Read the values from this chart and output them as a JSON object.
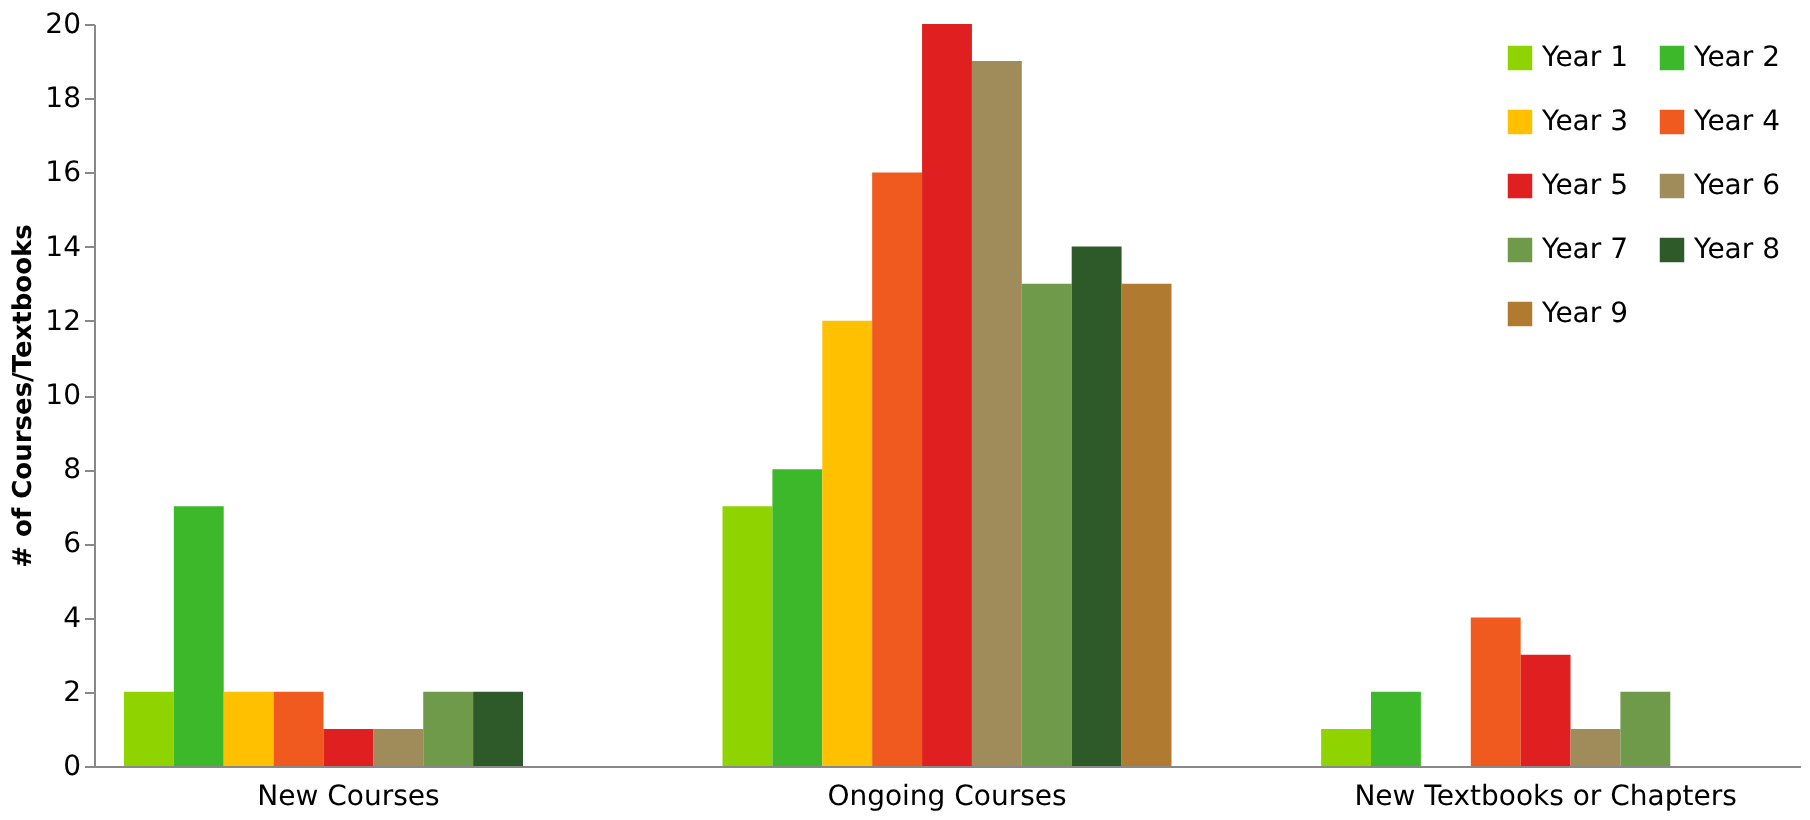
{
  "chart_data": {
    "type": "bar",
    "ylabel": "# of Courses/Textbooks",
    "categories": [
      "New Courses",
      "Ongoing Courses",
      "New Textbooks or Chapters"
    ],
    "series": [
      {
        "name": "Year 1",
        "color": "#8fd400",
        "values": [
          2,
          7,
          1
        ]
      },
      {
        "name": "Year 2",
        "color": "#3cb82a",
        "values": [
          7,
          8,
          2
        ]
      },
      {
        "name": "Year 3",
        "color": "#ffc000",
        "values": [
          2,
          12,
          0
        ]
      },
      {
        "name": "Year 4",
        "color": "#f05a1e",
        "values": [
          2,
          16,
          4
        ]
      },
      {
        "name": "Year 5",
        "color": "#e02020",
        "values": [
          1,
          20,
          3
        ]
      },
      {
        "name": "Year 6",
        "color": "#a08c5a",
        "values": [
          1,
          19,
          1
        ]
      },
      {
        "name": "Year 7",
        "color": "#6e9a4a",
        "values": [
          2,
          13,
          2
        ]
      },
      {
        "name": "Year 8",
        "color": "#2e5a2a",
        "values": [
          2,
          14,
          0
        ]
      },
      {
        "name": "Year 9",
        "color": "#b07a30",
        "values": [
          0,
          13,
          0
        ]
      }
    ],
    "ylim": [
      0,
      20
    ],
    "yticks": [
      0,
      2,
      4,
      6,
      8,
      10,
      12,
      14,
      16,
      18,
      20
    ],
    "grid": false,
    "legend": "top right"
  }
}
